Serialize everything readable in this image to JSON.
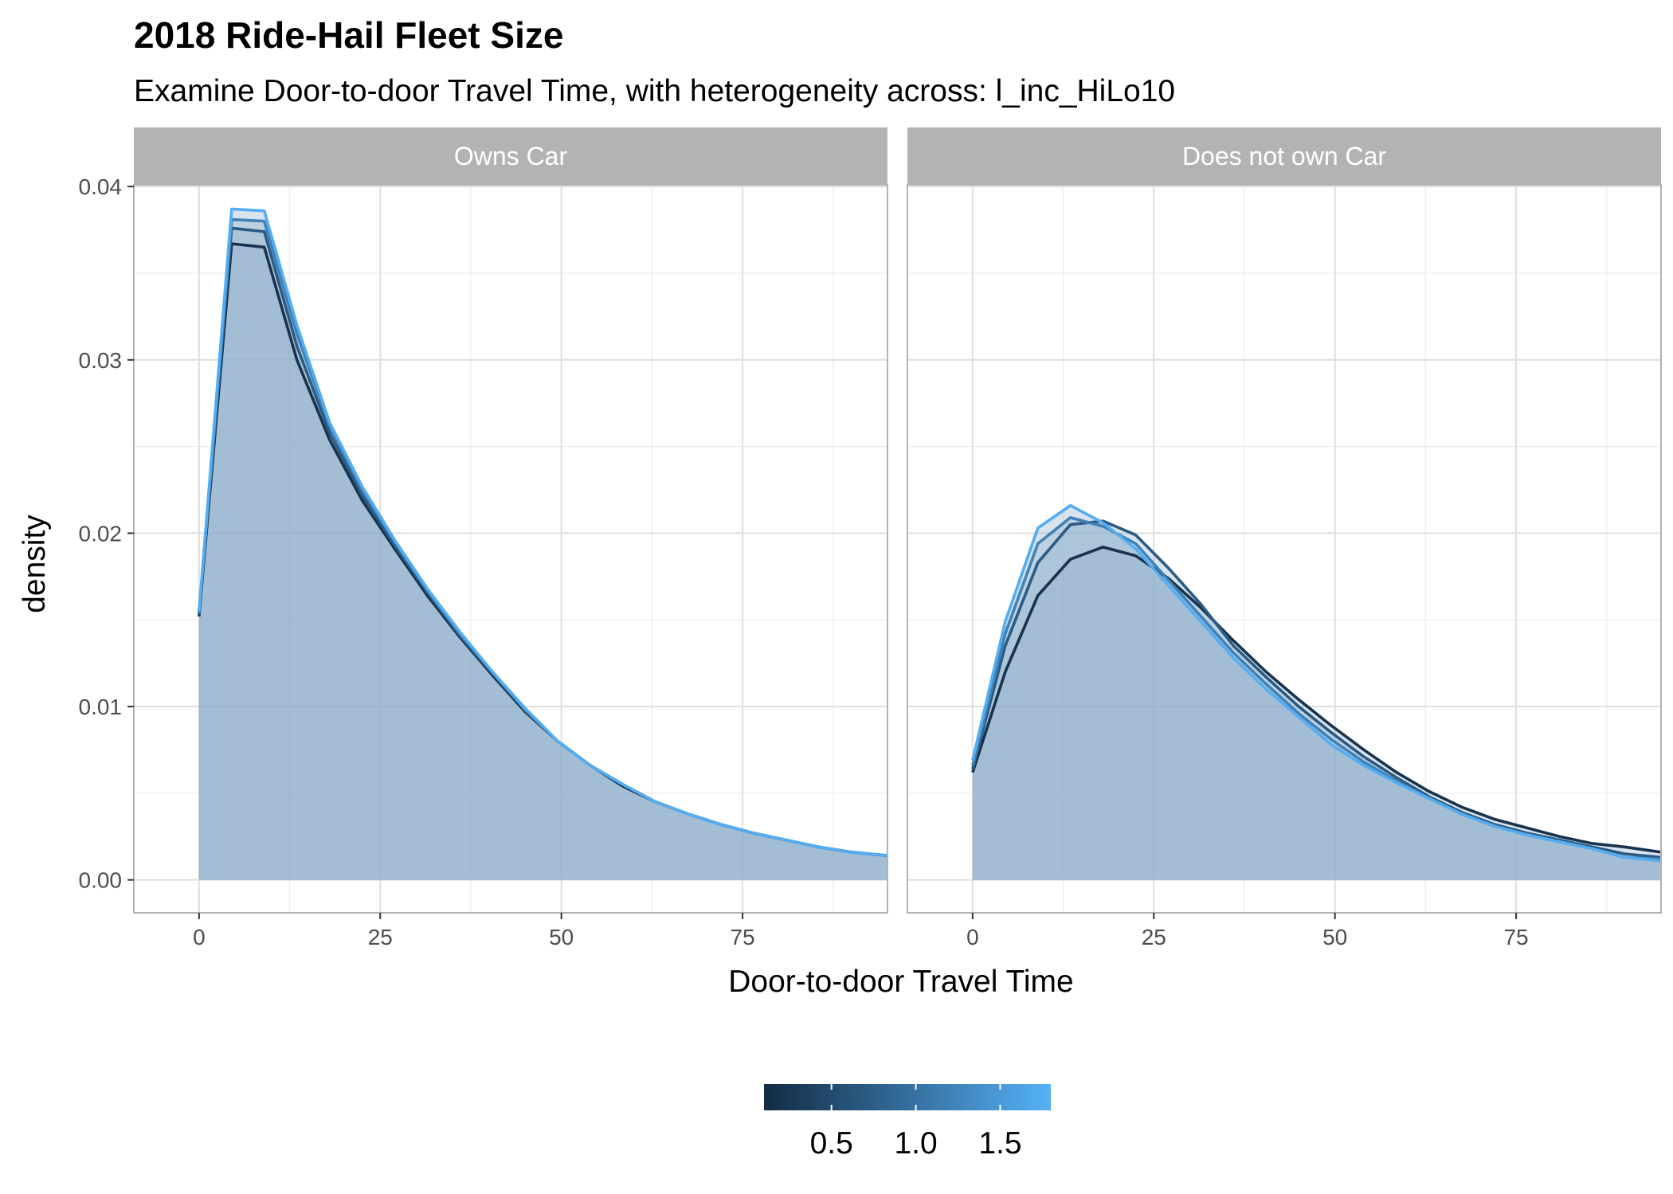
{
  "chart_data": {
    "type": "area",
    "title": "2018 Ride-Hail Fleet Size",
    "subtitle": "Examine Door-to-door Travel Time, with heterogeneity across: l_inc_HiLo10",
    "xlabel": "Door-to-door Travel Time",
    "ylabel": "density",
    "xlim": [
      -9,
      95
    ],
    "ylim": [
      -0.0019,
      0.0401
    ],
    "x_ticks": [
      "0",
      "25",
      "50",
      "75"
    ],
    "y_ticks": [
      "0.00",
      "0.01",
      "0.02",
      "0.03",
      "0.04"
    ],
    "grid": true,
    "fill_color": "#8fb0cc",
    "strip_color": "#b3b3b3",
    "legend": {
      "type": "colorbar",
      "position": "bottom",
      "range": [
        0.1,
        1.8
      ],
      "ticks": [
        "0.5",
        "1.0",
        "1.5"
      ],
      "color_low": "#132b43",
      "color_high": "#56b1f7"
    },
    "x": [
      0,
      4.5,
      9,
      13.5,
      18,
      22.5,
      27,
      31.5,
      36,
      40.5,
      45,
      49.5,
      54,
      58.5,
      63,
      67.5,
      72,
      76.5,
      81,
      85.5,
      90,
      95
    ],
    "panels": [
      {
        "label": "Owns Car",
        "series": [
          {
            "color_value": 0.2,
            "values": [
              0.0152,
              0.0367,
              0.0365,
              0.03,
              0.0254,
              0.0219,
              0.0191,
              0.0164,
              0.014,
              0.0118,
              0.0097,
              0.008,
              0.0066,
              0.0054,
              0.0045,
              0.0038,
              0.0032,
              0.0027,
              0.0023,
              0.0019,
              0.0016,
              0.0014
            ]
          },
          {
            "color_value": 0.7,
            "values": [
              0.0153,
              0.0376,
              0.0374,
              0.0308,
              0.0258,
              0.0222,
              0.0193,
              0.0166,
              0.0141,
              0.0119,
              0.0098,
              0.008,
              0.0066,
              0.0055,
              0.0045,
              0.0038,
              0.0032,
              0.0027,
              0.0023,
              0.0019,
              0.0016,
              0.0014
            ]
          },
          {
            "color_value": 1.2,
            "values": [
              0.0154,
              0.0381,
              0.038,
              0.0315,
              0.0262,
              0.0225,
              0.0195,
              0.0167,
              0.0142,
              0.012,
              0.0098,
              0.008,
              0.0066,
              0.0055,
              0.0045,
              0.0038,
              0.0032,
              0.0027,
              0.0023,
              0.0019,
              0.0016,
              0.0014
            ]
          },
          {
            "color_value": 1.75,
            "values": [
              0.0155,
              0.0387,
              0.0386,
              0.032,
              0.0264,
              0.0227,
              0.0196,
              0.0168,
              0.0143,
              0.012,
              0.0099,
              0.008,
              0.0066,
              0.0055,
              0.0045,
              0.0038,
              0.0032,
              0.0027,
              0.0023,
              0.0019,
              0.0016,
              0.0014
            ]
          }
        ]
      },
      {
        "label": "Does not own Car",
        "series": [
          {
            "color_value": 0.2,
            "values": [
              0.0062,
              0.012,
              0.0164,
              0.0185,
              0.0192,
              0.0187,
              0.0174,
              0.0157,
              0.0138,
              0.012,
              0.0104,
              0.0089,
              0.0075,
              0.0062,
              0.0051,
              0.0042,
              0.0035,
              0.003,
              0.0025,
              0.0021,
              0.0019,
              0.0016
            ]
          },
          {
            "color_value": 0.7,
            "values": [
              0.0064,
              0.0135,
              0.0183,
              0.0205,
              0.0207,
              0.0199,
              0.018,
              0.0159,
              0.0135,
              0.0117,
              0.01,
              0.0085,
              0.0071,
              0.0059,
              0.0048,
              0.0039,
              0.0032,
              0.0027,
              0.0023,
              0.0019,
              0.0015,
              0.0013
            ]
          },
          {
            "color_value": 1.2,
            "values": [
              0.0066,
              0.0142,
              0.0194,
              0.0209,
              0.0204,
              0.0194,
              0.0173,
              0.0152,
              0.0131,
              0.0113,
              0.0096,
              0.0081,
              0.0068,
              0.0057,
              0.0047,
              0.0038,
              0.0031,
              0.0026,
              0.0022,
              0.0018,
              0.0013,
              0.0012
            ]
          },
          {
            "color_value": 1.75,
            "values": [
              0.0069,
              0.0149,
              0.0203,
              0.0216,
              0.0206,
              0.0191,
              0.017,
              0.0149,
              0.0128,
              0.011,
              0.0094,
              0.0078,
              0.0066,
              0.0056,
              0.0047,
              0.0038,
              0.0031,
              0.0026,
              0.0022,
              0.0018,
              0.0013,
              0.0011
            ]
          }
        ]
      }
    ]
  }
}
